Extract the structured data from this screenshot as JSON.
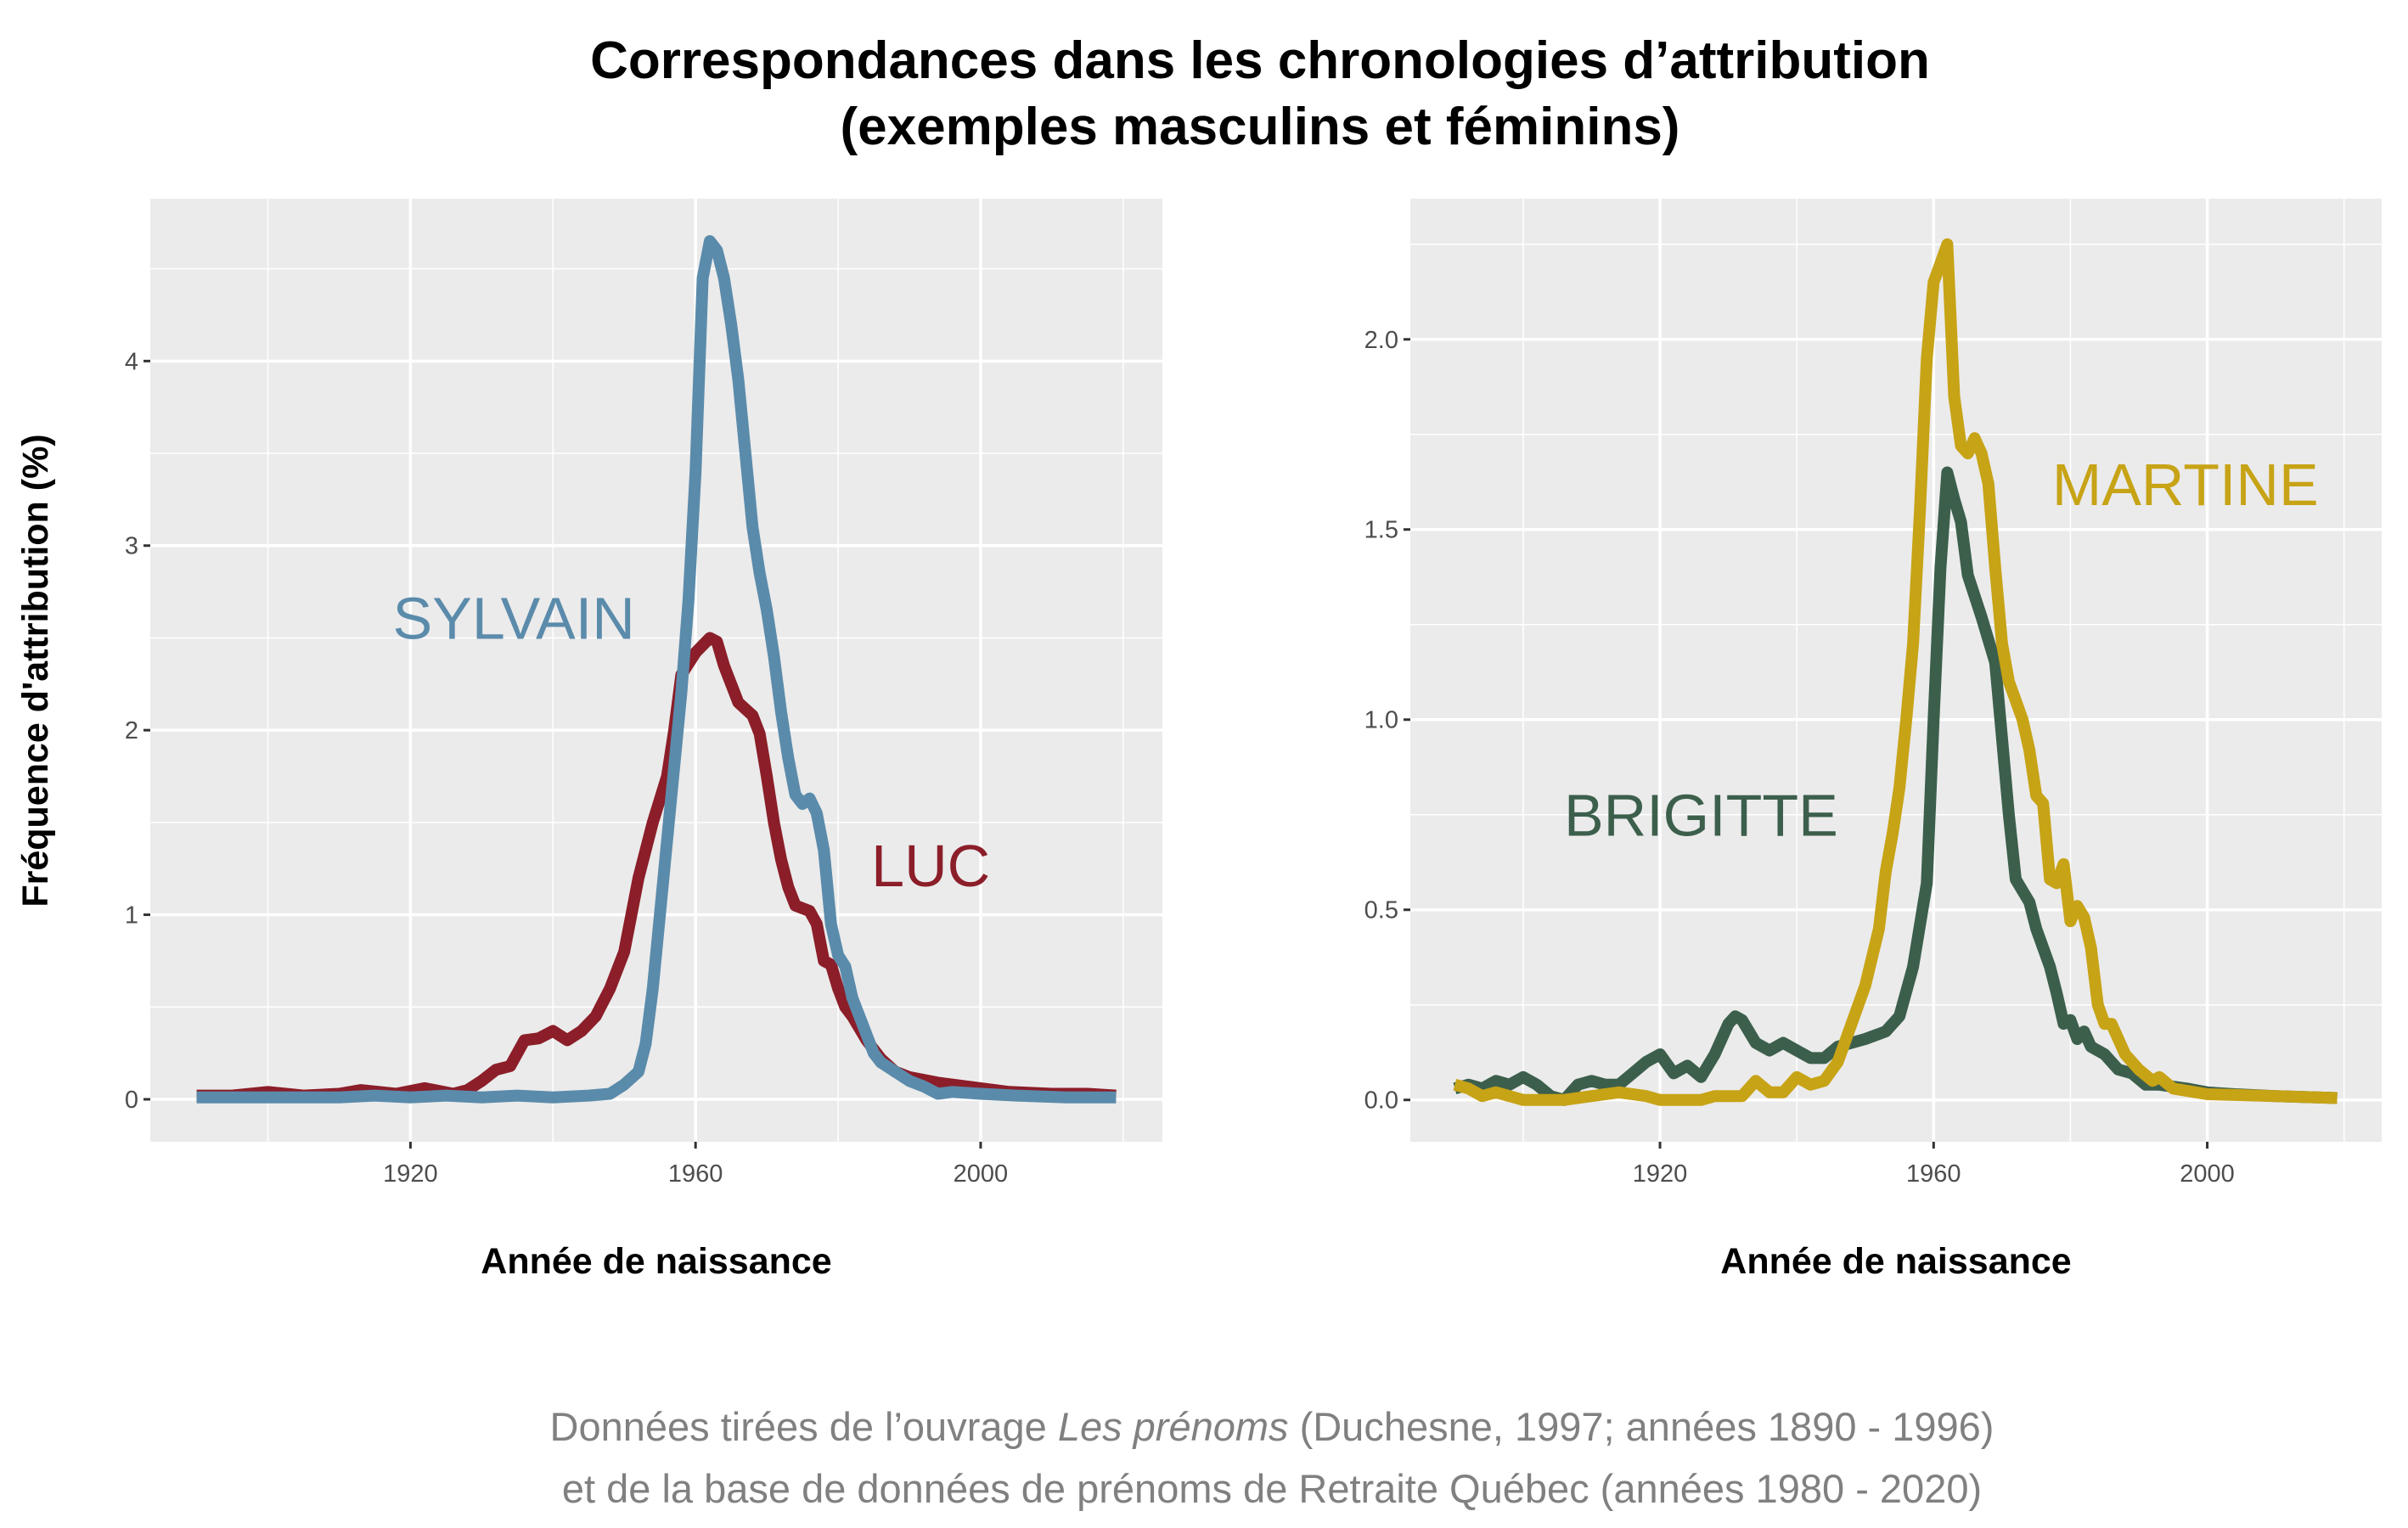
{
  "title": [
    "Correspondances dans les chronologies d’attribution",
    "(exemples masculins et féminins)"
  ],
  "caption": {
    "line1_before": "Données tirées de l’ouvrage ",
    "line1_italic": "Les prénoms",
    "line1_after": " (Duchesne, 1997; années 1890 - 1996)",
    "line2": "et de la base de données de prénoms de Retraite Québec (années 1980 - 2020)"
  },
  "chart_data": [
    {
      "type": "line",
      "xlabel": "Année de naissance",
      "ylabel": "Fréquence d'attribution (%)",
      "xlim": [
        1883.5,
        2025.5
      ],
      "ylim": [
        -0.23,
        4.88
      ],
      "xticks": [
        1920,
        1960,
        2000
      ],
      "xminor": [
        1900,
        1940,
        1980,
        2020
      ],
      "yticks": [
        0,
        1,
        2,
        3,
        4
      ],
      "yminor": [
        0.5,
        1.5,
        2.5,
        3.5,
        4.5
      ],
      "ytick_format": 0,
      "grid": true,
      "background": "#ebebeb",
      "series": [
        {
          "name": "LUC",
          "color": "#8b1e29",
          "label_at": [
            1993,
            1.27
          ],
          "points": [
            [
              1890,
              0.02
            ],
            [
              1895,
              0.02
            ],
            [
              1900,
              0.04
            ],
            [
              1905,
              0.02
            ],
            [
              1910,
              0.03
            ],
            [
              1913,
              0.05
            ],
            [
              1918,
              0.03
            ],
            [
              1922,
              0.06
            ],
            [
              1926,
              0.03
            ],
            [
              1928,
              0.05
            ],
            [
              1930,
              0.1
            ],
            [
              1932,
              0.16
            ],
            [
              1934,
              0.18
            ],
            [
              1936,
              0.32
            ],
            [
              1938,
              0.33
            ],
            [
              1940,
              0.37
            ],
            [
              1942,
              0.32
            ],
            [
              1944,
              0.37
            ],
            [
              1946,
              0.45
            ],
            [
              1948,
              0.6
            ],
            [
              1950,
              0.8
            ],
            [
              1951,
              1.0
            ],
            [
              1952,
              1.2
            ],
            [
              1954,
              1.5
            ],
            [
              1956,
              1.75
            ],
            [
              1957,
              2.0
            ],
            [
              1958,
              2.3
            ],
            [
              1960,
              2.42
            ],
            [
              1962,
              2.5
            ],
            [
              1963,
              2.48
            ],
            [
              1964,
              2.35
            ],
            [
              1966,
              2.15
            ],
            [
              1968,
              2.08
            ],
            [
              1969,
              1.98
            ],
            [
              1970,
              1.75
            ],
            [
              1971,
              1.5
            ],
            [
              1972,
              1.3
            ],
            [
              1973,
              1.15
            ],
            [
              1974,
              1.05
            ],
            [
              1976,
              1.02
            ],
            [
              1977,
              0.95
            ],
            [
              1978,
              0.75
            ],
            [
              1979,
              0.73
            ],
            [
              1980,
              0.6
            ],
            [
              1981,
              0.5
            ],
            [
              1982,
              0.45
            ],
            [
              1984,
              0.32
            ],
            [
              1986,
              0.22
            ],
            [
              1988,
              0.15
            ],
            [
              1990,
              0.12
            ],
            [
              1994,
              0.09
            ],
            [
              1998,
              0.07
            ],
            [
              2004,
              0.04
            ],
            [
              2010,
              0.03
            ],
            [
              2015,
              0.03
            ],
            [
              2019,
              0.02
            ]
          ]
        },
        {
          "name": "SYLVAIN",
          "color": "#5b8bab",
          "label_at": [
            1934.5,
            2.61
          ],
          "points": [
            [
              1890,
              0.01
            ],
            [
              1900,
              0.01
            ],
            [
              1910,
              0.01
            ],
            [
              1915,
              0.02
            ],
            [
              1920,
              0.01
            ],
            [
              1925,
              0.02
            ],
            [
              1930,
              0.01
            ],
            [
              1935,
              0.02
            ],
            [
              1940,
              0.01
            ],
            [
              1945,
              0.02
            ],
            [
              1948,
              0.03
            ],
            [
              1950,
              0.08
            ],
            [
              1952,
              0.15
            ],
            [
              1953,
              0.3
            ],
            [
              1954,
              0.6
            ],
            [
              1955,
              1.0
            ],
            [
              1956,
              1.4
            ],
            [
              1957,
              1.8
            ],
            [
              1958,
              2.2
            ],
            [
              1959,
              2.7
            ],
            [
              1960,
              3.4
            ],
            [
              1961,
              4.45
            ],
            [
              1962,
              4.65
            ],
            [
              1963,
              4.6
            ],
            [
              1964,
              4.45
            ],
            [
              1965,
              4.2
            ],
            [
              1966,
              3.9
            ],
            [
              1967,
              3.5
            ],
            [
              1968,
              3.1
            ],
            [
              1969,
              2.85
            ],
            [
              1970,
              2.65
            ],
            [
              1971,
              2.4
            ],
            [
              1972,
              2.1
            ],
            [
              1973,
              1.85
            ],
            [
              1974,
              1.65
            ],
            [
              1975,
              1.6
            ],
            [
              1976,
              1.63
            ],
            [
              1977,
              1.55
            ],
            [
              1978,
              1.35
            ],
            [
              1979,
              0.95
            ],
            [
              1980,
              0.78
            ],
            [
              1981,
              0.72
            ],
            [
              1982,
              0.55
            ],
            [
              1983,
              0.45
            ],
            [
              1984,
              0.35
            ],
            [
              1985,
              0.25
            ],
            [
              1986,
              0.2
            ],
            [
              1988,
              0.15
            ],
            [
              1990,
              0.1
            ],
            [
              1992,
              0.07
            ],
            [
              1994,
              0.03
            ],
            [
              1996,
              0.04
            ],
            [
              2000,
              0.03
            ],
            [
              2005,
              0.02
            ],
            [
              2012,
              0.01
            ],
            [
              2019,
              0.01
            ]
          ]
        }
      ]
    },
    {
      "type": "line",
      "xlabel": "Année de naissance",
      "ylabel": "",
      "xlim": [
        1883.5,
        2025.5
      ],
      "ylim": [
        -0.11,
        2.37
      ],
      "xticks": [
        1920,
        1960,
        2000
      ],
      "xminor": [
        1900,
        1940,
        1980,
        2020
      ],
      "yticks": [
        0,
        0.5,
        1,
        1.5,
        2
      ],
      "yminor": [
        0.25,
        0.75,
        1.25,
        1.75,
        2.25
      ],
      "ytick_format": 1,
      "grid": true,
      "background": "#ebebeb",
      "series": [
        {
          "name": "BRIGITTE",
          "color": "#3c5f4c",
          "label_at": [
            1926,
            0.75
          ],
          "points": [
            [
              1890,
              0.03
            ],
            [
              1892,
              0.04
            ],
            [
              1894,
              0.03
            ],
            [
              1896,
              0.05
            ],
            [
              1898,
              0.04
            ],
            [
              1900,
              0.06
            ],
            [
              1902,
              0.04
            ],
            [
              1904,
              0.01
            ],
            [
              1906,
              0.0
            ],
            [
              1908,
              0.04
            ],
            [
              1910,
              0.05
            ],
            [
              1912,
              0.04
            ],
            [
              1914,
              0.04
            ],
            [
              1916,
              0.07
            ],
            [
              1918,
              0.1
            ],
            [
              1920,
              0.12
            ],
            [
              1922,
              0.07
            ],
            [
              1924,
              0.09
            ],
            [
              1926,
              0.06
            ],
            [
              1928,
              0.12
            ],
            [
              1930,
              0.2
            ],
            [
              1931,
              0.22
            ],
            [
              1932,
              0.21
            ],
            [
              1934,
              0.15
            ],
            [
              1936,
              0.13
            ],
            [
              1938,
              0.15
            ],
            [
              1940,
              0.13
            ],
            [
              1942,
              0.11
            ],
            [
              1944,
              0.11
            ],
            [
              1946,
              0.14
            ],
            [
              1948,
              0.15
            ],
            [
              1950,
              0.16
            ],
            [
              1953,
              0.18
            ],
            [
              1955,
              0.22
            ],
            [
              1957,
              0.35
            ],
            [
              1959,
              0.57
            ],
            [
              1960,
              1.0
            ],
            [
              1961,
              1.4
            ],
            [
              1962,
              1.65
            ],
            [
              1963,
              1.58
            ],
            [
              1964,
              1.52
            ],
            [
              1965,
              1.38
            ],
            [
              1967,
              1.27
            ],
            [
              1969,
              1.15
            ],
            [
              1970,
              0.95
            ],
            [
              1971,
              0.75
            ],
            [
              1972,
              0.58
            ],
            [
              1973,
              0.55
            ],
            [
              1974,
              0.52
            ],
            [
              1975,
              0.45
            ],
            [
              1977,
              0.35
            ],
            [
              1978,
              0.28
            ],
            [
              1979,
              0.2
            ],
            [
              1980,
              0.21
            ],
            [
              1981,
              0.16
            ],
            [
              1982,
              0.18
            ],
            [
              1983,
              0.14
            ],
            [
              1985,
              0.12
            ],
            [
              1987,
              0.08
            ],
            [
              1989,
              0.07
            ],
            [
              1991,
              0.04
            ],
            [
              1993,
              0.04
            ],
            [
              1997,
              0.03
            ],
            [
              2000,
              0.02
            ],
            [
              2004,
              0.015
            ],
            [
              2010,
              0.01
            ],
            [
              2019,
              0.005
            ]
          ]
        },
        {
          "name": "MARTINE",
          "color": "#c7a316",
          "label_at": [
            1996.8,
            1.62
          ],
          "points": [
            [
              1890,
              0.04
            ],
            [
              1892,
              0.03
            ],
            [
              1894,
              0.01
            ],
            [
              1896,
              0.02
            ],
            [
              1898,
              0.01
            ],
            [
              1900,
              0.0
            ],
            [
              1906,
              0.0
            ],
            [
              1910,
              0.01
            ],
            [
              1914,
              0.02
            ],
            [
              1918,
              0.01
            ],
            [
              1920,
              0.0
            ],
            [
              1926,
              0.0
            ],
            [
              1928,
              0.01
            ],
            [
              1932,
              0.01
            ],
            [
              1934,
              0.05
            ],
            [
              1936,
              0.02
            ],
            [
              1938,
              0.02
            ],
            [
              1940,
              0.06
            ],
            [
              1942,
              0.04
            ],
            [
              1944,
              0.05
            ],
            [
              1946,
              0.1
            ],
            [
              1948,
              0.2
            ],
            [
              1950,
              0.3
            ],
            [
              1952,
              0.45
            ],
            [
              1953,
              0.6
            ],
            [
              1954,
              0.7
            ],
            [
              1955,
              0.82
            ],
            [
              1956,
              1.0
            ],
            [
              1957,
              1.2
            ],
            [
              1958,
              1.55
            ],
            [
              1959,
              1.95
            ],
            [
              1960,
              2.15
            ],
            [
              1961,
              2.2
            ],
            [
              1962,
              2.25
            ],
            [
              1963,
              1.85
            ],
            [
              1964,
              1.72
            ],
            [
              1965,
              1.7
            ],
            [
              1966,
              1.74
            ],
            [
              1967,
              1.7
            ],
            [
              1968,
              1.62
            ],
            [
              1969,
              1.4
            ],
            [
              1970,
              1.2
            ],
            [
              1971,
              1.1
            ],
            [
              1972,
              1.05
            ],
            [
              1973,
              1.0
            ],
            [
              1974,
              0.92
            ],
            [
              1975,
              0.8
            ],
            [
              1976,
              0.78
            ],
            [
              1977,
              0.58
            ],
            [
              1978,
              0.57
            ],
            [
              1979,
              0.62
            ],
            [
              1980,
              0.47
            ],
            [
              1981,
              0.51
            ],
            [
              1982,
              0.48
            ],
            [
              1983,
              0.4
            ],
            [
              1984,
              0.25
            ],
            [
              1985,
              0.2
            ],
            [
              1986,
              0.2
            ],
            [
              1988,
              0.12
            ],
            [
              1990,
              0.08
            ],
            [
              1992,
              0.05
            ],
            [
              1993,
              0.06
            ],
            [
              1995,
              0.03
            ],
            [
              2000,
              0.015
            ],
            [
              2010,
              0.01
            ],
            [
              2019,
              0.005
            ]
          ]
        }
      ]
    }
  ]
}
